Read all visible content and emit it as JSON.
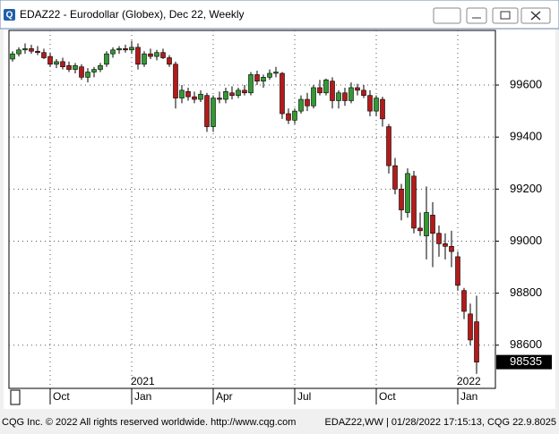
{
  "window_title": "EDAZ22 - Eurodollar (Globex), Dec 22, Weekly",
  "chart_data": {
    "type": "candlestick",
    "categories": [
      null,
      null,
      null,
      null,
      null,
      null,
      "Oct",
      null,
      null,
      null,
      null,
      null,
      null,
      null,
      null,
      null,
      null,
      null,
      null,
      "Jan",
      null,
      null,
      null,
      null,
      null,
      null,
      null,
      null,
      null,
      null,
      null,
      null,
      "Apr",
      null,
      null,
      null,
      null,
      null,
      null,
      null,
      null,
      null,
      null,
      null,
      null,
      "Jul",
      null,
      null,
      null,
      null,
      null,
      null,
      null,
      null,
      null,
      null,
      null,
      null,
      "Oct",
      null,
      null,
      null,
      null,
      null,
      null,
      null,
      null,
      null,
      null,
      null,
      null,
      "Jan",
      null,
      null,
      null
    ],
    "category_years": [
      null,
      null,
      null,
      null,
      null,
      null,
      null,
      null,
      null,
      null,
      null,
      null,
      null,
      null,
      null,
      null,
      null,
      null,
      null,
      "2021",
      null,
      null,
      null,
      null,
      null,
      null,
      null,
      null,
      null,
      null,
      null,
      null,
      null,
      null,
      null,
      null,
      null,
      null,
      null,
      null,
      null,
      null,
      null,
      null,
      null,
      null,
      null,
      null,
      null,
      null,
      null,
      null,
      null,
      null,
      null,
      null,
      null,
      null,
      null,
      null,
      null,
      null,
      null,
      null,
      null,
      null,
      null,
      null,
      null,
      null,
      null,
      "2022",
      null,
      null,
      null
    ],
    "open": [
      99700,
      99720,
      99735,
      99740,
      99730,
      99725,
      99710,
      99680,
      99690,
      99675,
      99660,
      99670,
      99630,
      99650,
      99660,
      99680,
      99720,
      99735,
      99740,
      99735,
      99745,
      99680,
      99720,
      99710,
      99725,
      99705,
      99680,
      99550,
      99575,
      99555,
      99545,
      99560,
      99440,
      99550,
      99545,
      99570,
      99560,
      99580,
      99570,
      99640,
      99615,
      99630,
      99645,
      99645,
      99490,
      99465,
      99500,
      99545,
      99520,
      99590,
      99570,
      99615,
      99540,
      99570,
      99540,
      99590,
      99580,
      99560,
      99500,
      99545,
      99440,
      99290,
      99200,
      99110,
      99250,
      99050,
      99020,
      99100,
      99030,
      98990,
      98980,
      98940,
      98810,
      98720,
      98690
    ],
    "high": [
      99730,
      99745,
      99760,
      99755,
      99750,
      99740,
      99725,
      99700,
      99705,
      99690,
      99685,
      99680,
      99665,
      99670,
      99685,
      99730,
      99745,
      99750,
      99755,
      99770,
      99760,
      99730,
      99740,
      99735,
      99740,
      99715,
      99690,
      99600,
      99590,
      99575,
      99580,
      99570,
      99560,
      99575,
      99590,
      99595,
      99590,
      99600,
      99650,
      99655,
      99640,
      99660,
      99670,
      99650,
      99510,
      99510,
      99560,
      99570,
      99600,
      99620,
      99625,
      99630,
      99580,
      99590,
      99610,
      99605,
      99600,
      99580,
      99560,
      99555,
      99450,
      99320,
      99220,
      99280,
      99270,
      99110,
      99210,
      99150,
      99060,
      99030,
      99040,
      98960,
      98820,
      98760,
      98790
    ],
    "low": [
      99690,
      99710,
      99720,
      99720,
      99715,
      99700,
      99670,
      99665,
      99660,
      99650,
      99645,
      99620,
      99610,
      99630,
      99650,
      99670,
      99705,
      99720,
      99725,
      99720,
      99660,
      99670,
      99700,
      99695,
      99700,
      99670,
      99510,
      99530,
      99540,
      99530,
      99535,
      99420,
      99420,
      99530,
      99530,
      99545,
      99550,
      99560,
      99560,
      99600,
      99590,
      99620,
      99630,
      99470,
      99450,
      99450,
      99490,
      99500,
      99510,
      99560,
      99560,
      99510,
      99510,
      99520,
      99530,
      99560,
      99550,
      99480,
      99480,
      99440,
      99260,
      99180,
      99080,
      99090,
      99030,
      99020,
      98930,
      98900,
      98940,
      98930,
      98900,
      98810,
      98700,
      98600,
      98490
    ],
    "close": [
      99720,
      99735,
      99740,
      99730,
      99725,
      99705,
      99680,
      99690,
      99670,
      99660,
      99675,
      99630,
      99650,
      99660,
      99675,
      99720,
      99735,
      99740,
      99735,
      99745,
      99680,
      99720,
      99710,
      99725,
      99705,
      99680,
      99550,
      99580,
      99555,
      99545,
      99565,
      99440,
      99550,
      99545,
      99575,
      99560,
      99580,
      99570,
      99640,
      99615,
      99630,
      99645,
      99650,
      99490,
      99465,
      99500,
      99545,
      99520,
      99590,
      99570,
      99620,
      99540,
      99570,
      99540,
      99590,
      99580,
      99560,
      99500,
      99550,
      99470,
      99290,
      99200,
      99120,
      99260,
      99050,
      99040,
      99110,
      99030,
      98990,
      98980,
      98960,
      98830,
      98730,
      98620,
      98535
    ],
    "up_color": "#339933",
    "down_color": "#b31b1b",
    "ylim": [
      98434,
      99810
    ],
    "yticks": [
      98600,
      98800,
      99000,
      99200,
      99400,
      99600
    ],
    "grid": true,
    "last_value": 98535
  },
  "footer": {
    "left": "CQG Inc. © 2022 All rights reserved worldwide. http://www.cqg.com",
    "right": "EDAZ22,WW | 01/28/2022 17:15:13, CQG 22.9.8025"
  }
}
